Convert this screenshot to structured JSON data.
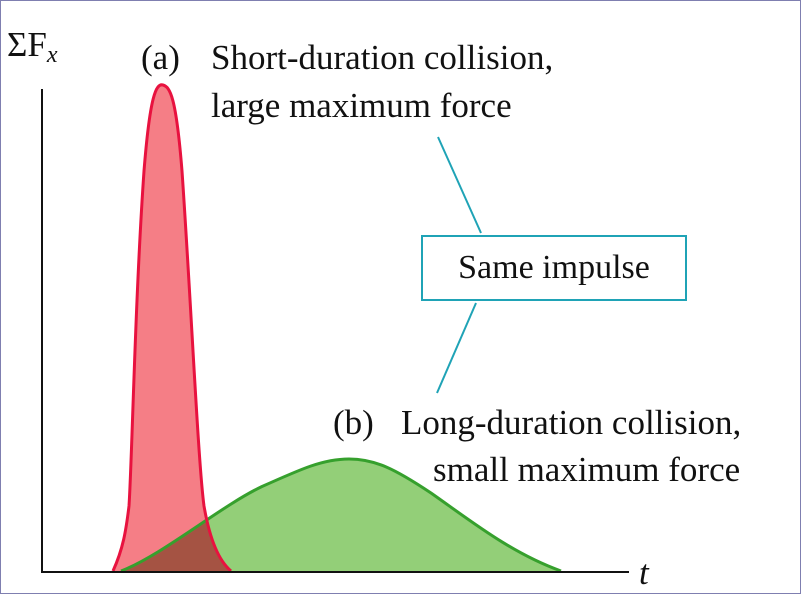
{
  "axes": {
    "y_symbol": "ΣF",
    "y_subscript": "x",
    "x_symbol": "t"
  },
  "curve_a": {
    "marker": "(a)",
    "line1": "Short-duration collision,",
    "line2": "large maximum force"
  },
  "curve_b": {
    "marker": "(b)",
    "line1": "Long-duration collision,",
    "line2": "small maximum force"
  },
  "callout": {
    "text": "Same impulse"
  },
  "colors": {
    "curve_a_fill": "#f57e86",
    "curve_a_stroke": "#e8123f",
    "curve_b_fill": "#93cf78",
    "curve_b_stroke": "#36a02d",
    "overlap_fill": "#a55343",
    "callout": "#1fa3b6"
  }
}
